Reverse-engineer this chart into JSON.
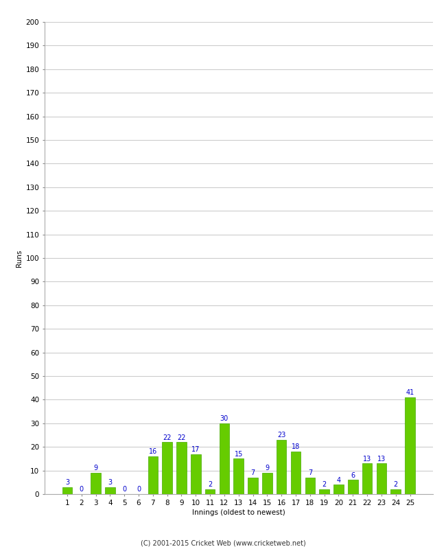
{
  "innings": [
    1,
    2,
    3,
    4,
    5,
    6,
    7,
    8,
    9,
    10,
    11,
    12,
    13,
    14,
    15,
    16,
    17,
    18,
    19,
    20,
    21,
    22,
    23,
    24,
    25
  ],
  "runs": [
    3,
    0,
    9,
    3,
    0,
    0,
    16,
    22,
    22,
    17,
    2,
    30,
    15,
    7,
    9,
    23,
    18,
    7,
    2,
    4,
    6,
    13,
    13,
    2,
    41
  ],
  "bar_color": "#66cc00",
  "bar_edge_color": "#44aa00",
  "label_color": "#0000cc",
  "ylabel": "Runs",
  "xlabel": "Innings (oldest to newest)",
  "ylim": [
    0,
    200
  ],
  "yticks": [
    0,
    10,
    20,
    30,
    40,
    50,
    60,
    70,
    80,
    90,
    100,
    110,
    120,
    130,
    140,
    150,
    160,
    170,
    180,
    190,
    200
  ],
  "grid_color": "#cccccc",
  "bg_color": "#ffffff",
  "footer": "(C) 2001-2015 Cricket Web (www.cricketweb.net)",
  "label_fontsize": 7,
  "axis_fontsize": 7.5,
  "footer_fontsize": 7,
  "tick_label_fontsize": 7.5
}
